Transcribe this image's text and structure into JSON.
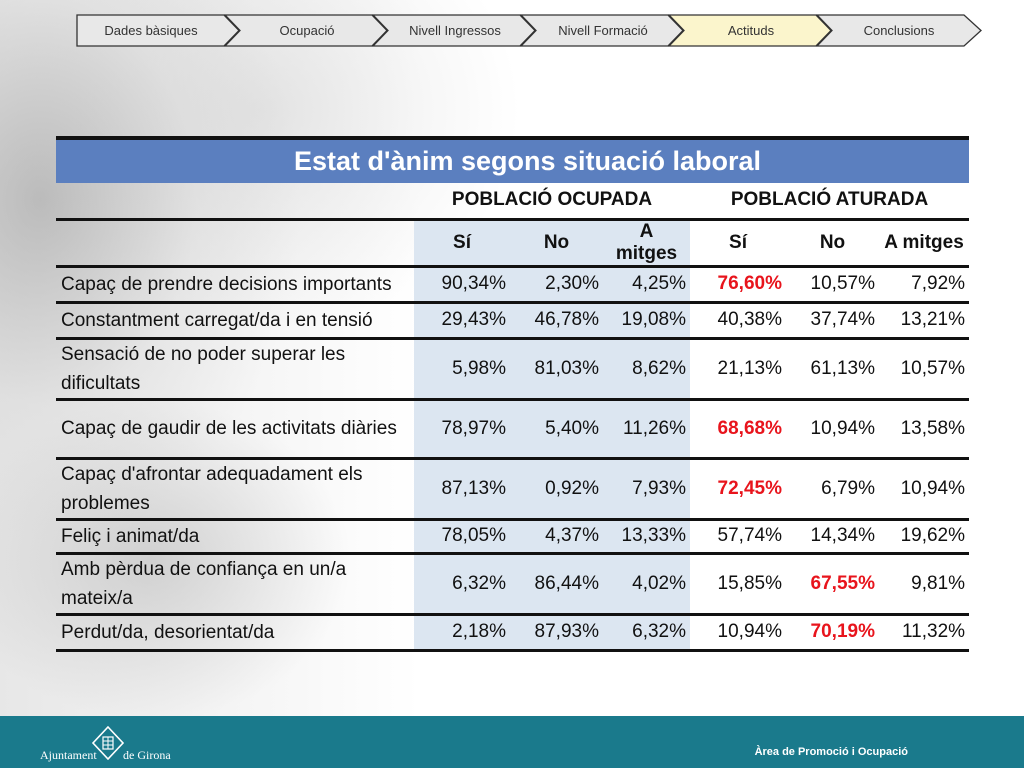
{
  "nav": {
    "items": [
      {
        "label": "Dades bàsiques",
        "active": false
      },
      {
        "label": "Ocupació",
        "active": false
      },
      {
        "label": "Nivell Ingressos",
        "active": false
      },
      {
        "label": "Nivell Formació",
        "active": false
      },
      {
        "label": "Actituds",
        "active": true
      },
      {
        "label": "Conclusions",
        "active": false
      }
    ],
    "active_color": "#fbf5cc",
    "inactive_color": "#e8e8e8"
  },
  "table": {
    "title": "Estat d'ànim segons situació laboral",
    "groups": [
      "POBLACIÓ OCUPADA",
      "POBLACIÓ ATURADA"
    ],
    "subheaders": [
      "Sí",
      "No",
      "A mitges",
      "Sí",
      "No",
      "A mitges"
    ],
    "rows": [
      {
        "label": "Capaç de prendre decisions importants",
        "values": [
          "90,34%",
          "2,30%",
          "4,25%",
          "76,60%",
          "10,57%",
          "7,92%"
        ]
      },
      {
        "label": "Constantment carregat/da i en tensió",
        "values": [
          "29,43%",
          "46,78%",
          "19,08%",
          "40,38%",
          "37,74%",
          "13,21%"
        ]
      },
      {
        "label": "Sensació de no poder superar les dificultats",
        "values": [
          "5,98%",
          "81,03%",
          "8,62%",
          "21,13%",
          "61,13%",
          "10,57%"
        ]
      },
      {
        "label": "Capaç de gaudir de les activitats diàries",
        "values": [
          "78,97%",
          "5,40%",
          "11,26%",
          "68,68%",
          "10,94%",
          "13,58%"
        ]
      },
      {
        "label": "Capaç d'afrontar adequadament els problemes",
        "values": [
          "87,13%",
          "0,92%",
          "7,93%",
          "72,45%",
          "6,79%",
          "10,94%"
        ]
      },
      {
        "label": "Feliç i animat/da",
        "values": [
          "78,05%",
          "4,37%",
          "13,33%",
          "57,74%",
          "14,34%",
          "19,62%"
        ]
      },
      {
        "label": "Amb pèrdua de confiança en un/a mateix/a",
        "values": [
          "6,32%",
          "86,44%",
          "4,02%",
          "15,85%",
          "67,55%",
          "9,81%"
        ]
      },
      {
        "label": "Perdut/da, desorientat/da",
        "values": [
          "2,18%",
          "87,93%",
          "6,32%",
          "10,94%",
          "70,19%",
          "11,32%"
        ]
      }
    ],
    "highlighted": [
      [
        0,
        3
      ],
      [
        3,
        3
      ],
      [
        4,
        3
      ],
      [
        6,
        4
      ],
      [
        7,
        4
      ]
    ],
    "header_color": "#5b7fbf",
    "highlight_color": "#e8141c",
    "shade_color": "#dce6f1"
  },
  "footer": {
    "logo_text_left": "Ajuntament",
    "logo_text_right": "de Girona",
    "logo_icon": "girona-city-logo-icon",
    "department": "Àrea de Promoció i Ocupació",
    "color": "#1a7a8c"
  }
}
